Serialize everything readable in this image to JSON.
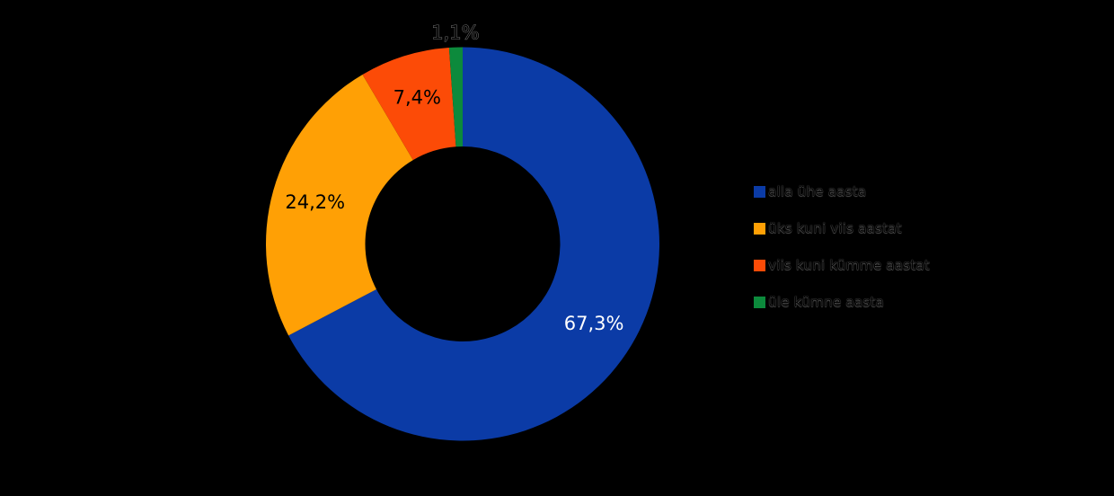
{
  "page": {
    "background_color": "#000000"
  },
  "chart_data": {
    "type": "pie",
    "subtype": "donut",
    "title": "",
    "legend_position": "right",
    "start_angle_deg": 0,
    "direction": "clockwise",
    "categories": [
      "alla ühe aasta",
      "üks kuni viis aastat",
      "viis kuni kümme aastat",
      "üle kümne aasta"
    ],
    "values": [
      67.3,
      24.2,
      7.4,
      1.1
    ],
    "value_labels": [
      "67,3%",
      "24,2%",
      "7,4%",
      "1,1%"
    ],
    "slice_colors": [
      "#0B3BA6",
      "#FFA005",
      "#FC4B07",
      "#0C8A3C"
    ],
    "value_label_colors": [
      "#FFFFFF",
      "#000000",
      "#000000",
      "#000000"
    ]
  }
}
